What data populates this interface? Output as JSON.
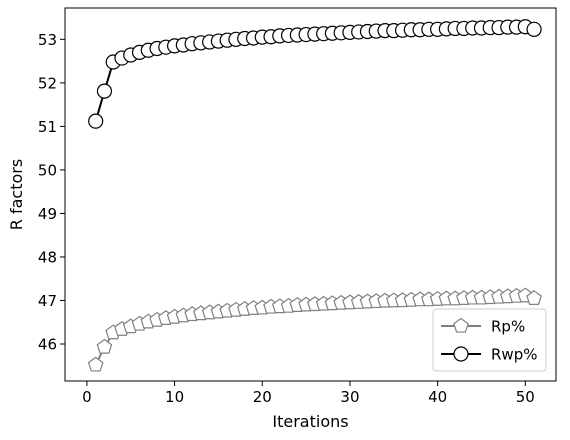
{
  "chart_data": {
    "type": "line",
    "xlabel": "Iterations",
    "ylabel": "R factors",
    "xlim": [
      -2.5,
      53.5
    ],
    "ylim": [
      45.15,
      53.72
    ],
    "xticks": [
      0,
      10,
      20,
      30,
      40,
      50
    ],
    "yticks": [
      46,
      47,
      48,
      49,
      50,
      51,
      52,
      53
    ],
    "legend_position": "lower-right",
    "grid": false,
    "series": [
      {
        "name": "Rp%",
        "marker": "pentagon",
        "line_color": "#808080",
        "marker_face": "#ffffff",
        "marker_edge": "#808080",
        "x": [
          1,
          2,
          3,
          4,
          5,
          6,
          7,
          8,
          9,
          10,
          11,
          12,
          13,
          14,
          15,
          16,
          17,
          18,
          19,
          20,
          21,
          22,
          23,
          24,
          25,
          26,
          27,
          28,
          29,
          30,
          31,
          32,
          33,
          34,
          35,
          36,
          37,
          38,
          39,
          40,
          41,
          42,
          43,
          44,
          45,
          46,
          47,
          48,
          49,
          50,
          51
        ],
        "values": [
          45.52,
          45.93,
          46.26,
          46.34,
          46.4,
          46.46,
          46.51,
          46.55,
          46.59,
          46.62,
          46.65,
          46.68,
          46.7,
          46.72,
          46.74,
          46.76,
          46.78,
          46.8,
          46.82,
          46.83,
          46.85,
          46.86,
          46.87,
          46.89,
          46.9,
          46.91,
          46.92,
          46.93,
          46.94,
          46.95,
          46.96,
          46.97,
          46.98,
          46.99,
          46.995,
          47.0,
          47.01,
          47.02,
          47.02,
          47.03,
          47.04,
          47.04,
          47.05,
          47.06,
          47.06,
          47.07,
          47.08,
          47.09,
          47.1,
          47.11,
          47.05
        ]
      },
      {
        "name": "Rwp%",
        "marker": "circle",
        "line_color": "#000000",
        "marker_face": "#ffffff",
        "marker_edge": "#000000",
        "x": [
          1,
          2,
          3,
          4,
          5,
          6,
          7,
          8,
          9,
          10,
          11,
          12,
          13,
          14,
          15,
          16,
          17,
          18,
          19,
          20,
          21,
          22,
          23,
          24,
          25,
          26,
          27,
          28,
          29,
          30,
          31,
          32,
          33,
          34,
          35,
          36,
          37,
          38,
          39,
          40,
          41,
          42,
          43,
          44,
          45,
          46,
          47,
          48,
          49,
          50,
          51
        ],
        "values": [
          51.12,
          51.81,
          52.48,
          52.57,
          52.64,
          52.7,
          52.75,
          52.79,
          52.82,
          52.85,
          52.87,
          52.9,
          52.92,
          52.94,
          52.96,
          52.98,
          53.0,
          53.02,
          53.03,
          53.05,
          53.06,
          53.08,
          53.09,
          53.1,
          53.11,
          53.12,
          53.13,
          53.14,
          53.15,
          53.16,
          53.17,
          53.18,
          53.19,
          53.2,
          53.2,
          53.21,
          53.22,
          53.22,
          53.23,
          53.23,
          53.24,
          53.25,
          53.25,
          53.26,
          53.26,
          53.27,
          53.27,
          53.28,
          53.28,
          53.29,
          53.23
        ]
      }
    ]
  }
}
